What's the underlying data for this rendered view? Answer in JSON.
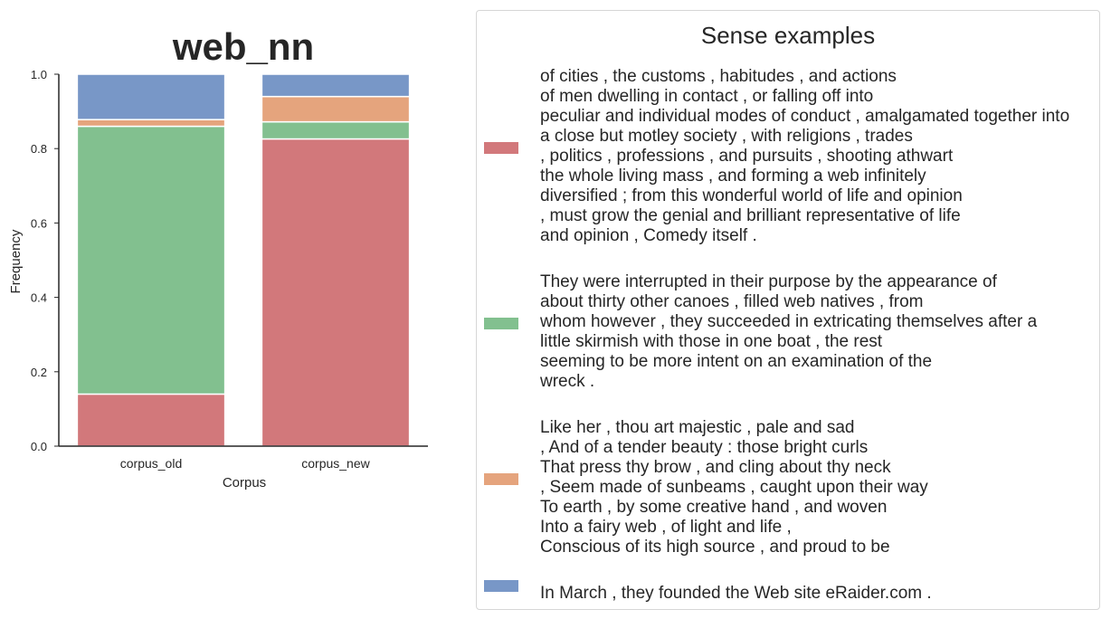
{
  "chart_data": {
    "type": "bar",
    "stacked": true,
    "title": "web_nn",
    "xlabel": "Corpus",
    "ylabel": "Frequency",
    "ylim": [
      0,
      1.0
    ],
    "yticks": [
      0.0,
      0.2,
      0.4,
      0.6,
      0.8,
      1.0
    ],
    "ytick_labels": [
      "0.0",
      "0.2",
      "0.4",
      "0.6",
      "0.8",
      "1.0"
    ],
    "categories": [
      "corpus_old",
      "corpus_new"
    ],
    "series": [
      {
        "color": "#d2787b",
        "values": [
          0.14,
          0.826
        ]
      },
      {
        "color": "#82c08f",
        "values": [
          0.72,
          0.046
        ]
      },
      {
        "color": "#e5a47d",
        "values": [
          0.018,
          0.068
        ]
      },
      {
        "color": "#7897c7",
        "values": [
          0.122,
          0.06
        ]
      }
    ],
    "grid": false
  },
  "legend": {
    "title": "Sense examples",
    "placement": "right",
    "entries": [
      {
        "color": "#d2787b",
        "text": "of cities , the customs , habitudes , and actions\nof men dwelling in contact , or falling off into\npeculiar and individual modes of conduct , amalgamated together into\na close but motley society , with religions , trades\n, politics , professions , and pursuits , shooting athwart\nthe whole living mass , and forming a web infinitely\ndiversified ; from this wonderful world of life and opinion\n, must grow the genial and brilliant representative of life\nand opinion , Comedy itself ."
      },
      {
        "color": "#82c08f",
        "text": "They were interrupted in their purpose by the appearance of\nabout thirty other canoes , filled web natives , from\nwhom however , they succeeded in extricating themselves after a\nlittle skirmish with those in one boat , the rest\nseeming to be more intent on an examination of the\nwreck ."
      },
      {
        "color": "#e5a47d",
        "text": "Like her , thou art majestic , pale and sad\n, And of a tender beauty : those bright curls\nThat press thy brow , and cling about thy neck\n, Seem made of sunbeams , caught upon their way\nTo earth , by some creative hand , and woven\nInto a fairy web , of light and life ,\nConscious of its high source , and proud to be"
      },
      {
        "color": "#7897c7",
        "text": "In March , they founded the Web site eRaider.com ."
      }
    ]
  }
}
